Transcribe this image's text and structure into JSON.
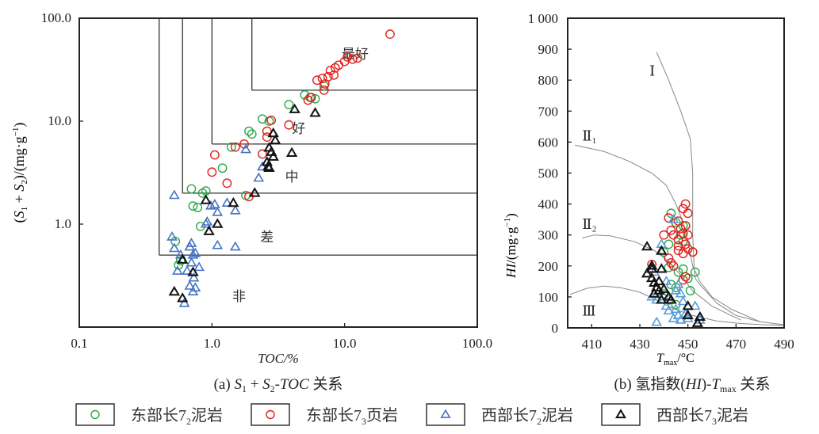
{
  "chart_data": [
    {
      "type": "scatter",
      "id": "a",
      "caption": "(a) S1 + S2-TOC 关系",
      "xlabel": "TOC/%",
      "ylabel": "(S1 + S2)/(mg·g⁻¹)",
      "xscale": "log",
      "yscale": "log",
      "xlim": [
        0.1,
        100
      ],
      "ylim": [
        0.1,
        100
      ],
      "xticks": [
        "0.1",
        "1.0",
        "10.0",
        "100.0"
      ],
      "yticks": [
        "1.0",
        "10.0",
        "100.0"
      ],
      "grid": false,
      "zones": [
        {
          "label": "最好",
          "toc_min": 2.0,
          "s_min": 20
        },
        {
          "label": "好",
          "toc_min": 1.0,
          "s_min": 6
        },
        {
          "label": "中",
          "toc_min": 0.6,
          "s_min": 2
        },
        {
          "label": "差",
          "toc_min": 0.4,
          "s_min": 0.5
        },
        {
          "label": "非",
          "toc_min": 0,
          "s_min": 0
        }
      ],
      "series": [
        {
          "name": "东部长7₂泥岩",
          "marker": "circle",
          "color": "#2aa84a",
          "points": [
            [
              2.4,
              10.5
            ],
            [
              2.7,
              10
            ],
            [
              1.9,
              8
            ],
            [
              2.0,
              7.5
            ],
            [
              1.4,
              5.6
            ],
            [
              3.8,
              14.5
            ],
            [
              5.5,
              17
            ],
            [
              6.0,
              16.5
            ],
            [
              5.0,
              18
            ],
            [
              7.0,
              22
            ],
            [
              1.2,
              3.5
            ],
            [
              1.8,
              1.9
            ],
            [
              0.7,
              2.2
            ],
            [
              0.85,
              2.0
            ],
            [
              0.9,
              2.1
            ],
            [
              0.72,
              1.5
            ],
            [
              0.78,
              1.45
            ],
            [
              0.82,
              0.95
            ],
            [
              0.53,
              0.68
            ],
            [
              0.58,
              0.44
            ],
            [
              0.56,
              0.4
            ]
          ]
        },
        {
          "name": "东部长7₃页岩",
          "marker": "circle",
          "color": "#e0201c",
          "points": [
            [
              22,
              70
            ],
            [
              10.5,
              42
            ],
            [
              11.5,
              40
            ],
            [
              12.5,
              41
            ],
            [
              10,
              38
            ],
            [
              8.5,
              33
            ],
            [
              9,
              35
            ],
            [
              7.8,
              31
            ],
            [
              8.3,
              28
            ],
            [
              6.8,
              26
            ],
            [
              7.5,
              27
            ],
            [
              6.2,
              25
            ],
            [
              7.1,
              23
            ],
            [
              7.0,
              20
            ],
            [
              5.3,
              16
            ],
            [
              5.6,
              17
            ],
            [
              2.8,
              10.2
            ],
            [
              2.6,
              8
            ],
            [
              2.6,
              7
            ],
            [
              3.8,
              9.2
            ],
            [
              1.05,
              4.7
            ],
            [
              1.0,
              3.2
            ],
            [
              1.5,
              5.6
            ],
            [
              1.3,
              2.5
            ],
            [
              2.4,
              4.8
            ],
            [
              1.75,
              6.0
            ],
            [
              1.9,
              1.85
            ]
          ]
        },
        {
          "name": "西部长7₂泥岩",
          "marker": "triangle",
          "color": "#4472c4",
          "points": [
            [
              1.8,
              5.3
            ],
            [
              2.4,
              3.6
            ],
            [
              2.25,
              2.8
            ],
            [
              0.52,
              1.9
            ],
            [
              0.98,
              1.5
            ],
            [
              1.05,
              1.55
            ],
            [
              1.1,
              1.3
            ],
            [
              1.3,
              1.6
            ],
            [
              1.5,
              1.35
            ],
            [
              0.9,
              1.0
            ],
            [
              0.92,
              1.05
            ],
            [
              1.1,
              0.62
            ],
            [
              1.5,
              0.6
            ],
            [
              0.5,
              0.75
            ],
            [
              0.52,
              0.58
            ],
            [
              0.58,
              0.5
            ],
            [
              0.6,
              0.45
            ],
            [
              0.68,
              0.6
            ],
            [
              0.7,
              0.65
            ],
            [
              0.72,
              0.5
            ],
            [
              0.75,
              0.52
            ],
            [
              0.7,
              0.42
            ],
            [
              0.65,
              0.35
            ],
            [
              0.8,
              0.38
            ],
            [
              0.73,
              0.3
            ],
            [
              0.68,
              0.25
            ],
            [
              0.75,
              0.24
            ],
            [
              0.72,
              0.22
            ],
            [
              0.62,
              0.17
            ],
            [
              0.55,
              0.35
            ]
          ]
        },
        {
          "name": "西部长7₃泥岩",
          "marker": "triangle",
          "color": "#111111",
          "points": [
            [
              6.0,
              12
            ],
            [
              4.2,
              13
            ],
            [
              2.9,
              7.6
            ],
            [
              3.0,
              6.5
            ],
            [
              4.0,
              4.9
            ],
            [
              2.7,
              5.5
            ],
            [
              2.8,
              5.0
            ],
            [
              2.6,
              4.0
            ],
            [
              2.65,
              3.6
            ],
            [
              2.7,
              3.5
            ],
            [
              2.9,
              4.5
            ],
            [
              2.1,
              2.0
            ],
            [
              0.9,
              1.7
            ],
            [
              1.45,
              1.6
            ],
            [
              1.1,
              1.0
            ],
            [
              0.95,
              0.85
            ],
            [
              0.6,
              0.45
            ],
            [
              0.72,
              0.34
            ],
            [
              0.52,
              0.22
            ],
            [
              0.6,
              0.19
            ]
          ]
        }
      ]
    },
    {
      "type": "scatter",
      "id": "b",
      "caption": "(b) 氢指数(HI)-Tmax 关系",
      "xlabel": "Tmax/°C",
      "ylabel": "HI/(mg·g⁻¹)",
      "xlim": [
        400,
        490
      ],
      "ylim": [
        0,
        1000
      ],
      "xticks": [
        "410",
        "430",
        "450",
        "470",
        "490"
      ],
      "yticks": [
        "0",
        "100",
        "200",
        "300",
        "400",
        "500",
        "600",
        "700",
        "800",
        "900",
        "1 000"
      ],
      "grid": false,
      "type_lines": [
        {
          "label": "Ⅰ",
          "points": [
            [
              437,
              890
            ],
            [
              442,
              800
            ],
            [
              447,
              700
            ],
            [
              451,
              610
            ],
            [
              452,
              500
            ],
            [
              452,
              300
            ],
            [
              452.5,
              200
            ],
            [
              453,
              160
            ],
            [
              455,
              140
            ],
            [
              462,
              80
            ],
            [
              470,
              40
            ],
            [
              480,
              20
            ],
            [
              490,
              10
            ]
          ]
        },
        {
          "label": "Ⅱ₁",
          "points": [
            [
              403,
              590
            ],
            [
              415,
              570
            ],
            [
              425,
              540
            ],
            [
              435,
              500
            ],
            [
              441,
              460
            ],
            [
              445,
              400
            ],
            [
              448,
              340
            ],
            [
              450,
              280
            ],
            [
              452,
              200
            ],
            [
              455,
              150
            ],
            [
              460,
              100
            ],
            [
              468,
              60
            ],
            [
              480,
              20
            ]
          ]
        },
        {
          "label": "Ⅱ₂",
          "points": [
            [
              406,
              290
            ],
            [
              411,
              300
            ],
            [
              418,
              297
            ],
            [
              428,
              278
            ],
            [
              436,
              250
            ],
            [
              442,
              215
            ],
            [
              447,
              170
            ],
            [
              452,
              120
            ],
            [
              460,
              70
            ],
            [
              472,
              25
            ]
          ]
        },
        {
          "label": "Ⅲ",
          "points": [
            [
              401,
              108
            ],
            [
              408,
              128
            ],
            [
              415,
              135
            ],
            [
              422,
              130
            ],
            [
              430,
              115
            ],
            [
              437,
              90
            ],
            [
              444,
              62
            ],
            [
              452,
              40
            ],
            [
              462,
              22
            ],
            [
              472,
              14
            ],
            [
              482,
              10
            ],
            [
              490,
              8
            ]
          ]
        }
      ],
      "series": [
        {
          "name": "东部长7₂泥岩",
          "marker": "circle",
          "color": "#2aa84a",
          "points": [
            [
              443,
              370
            ],
            [
              445,
              340
            ],
            [
              448,
              330
            ],
            [
              447,
              300
            ],
            [
              442,
              270
            ],
            [
              440,
              245
            ],
            [
              448,
              280
            ],
            [
              452,
              245
            ],
            [
              442,
              195
            ],
            [
              446,
              180
            ],
            [
              448,
              190
            ],
            [
              450,
              160
            ],
            [
              453,
              180
            ],
            [
              443,
              140
            ],
            [
              445,
              130
            ],
            [
              451,
              120
            ],
            [
              440,
              110
            ],
            [
              445,
              75
            ],
            [
              442,
              90
            ]
          ]
        },
        {
          "name": "东部长7₃页岩",
          "marker": "circle",
          "color": "#e0201c",
          "points": [
            [
              449,
              400
            ],
            [
              448,
              385
            ],
            [
              450,
              370
            ],
            [
              442,
              355
            ],
            [
              446,
              345
            ],
            [
              449,
              330
            ],
            [
              447,
              320
            ],
            [
              443,
              315
            ],
            [
              448,
              305
            ],
            [
              450,
              300
            ],
            [
              440,
              300
            ],
            [
              446,
              285
            ],
            [
              449,
              270
            ],
            [
              450,
              255
            ],
            [
              446,
              250
            ],
            [
              448,
              240
            ],
            [
              452,
              245
            ],
            [
              442,
              225
            ],
            [
              443,
              210
            ],
            [
              444,
              200
            ],
            [
              448,
              155
            ],
            [
              449,
              165
            ],
            [
              435,
              205
            ],
            [
              444,
              300
            ],
            [
              446,
              265
            ]
          ]
        },
        {
          "name": "西部长7₂泥岩",
          "marker": "triangle",
          "color": "#5b9bd5",
          "points": [
            [
              444,
              350
            ],
            [
              439,
              270
            ],
            [
              441,
              150
            ],
            [
              446,
              140
            ],
            [
              445,
              120
            ],
            [
              440,
              100
            ],
            [
              447,
              110
            ],
            [
              443,
              90
            ],
            [
              437,
              90
            ],
            [
              435,
              100
            ],
            [
              436,
              180
            ],
            [
              441,
              70
            ],
            [
              445,
              60
            ],
            [
              446,
              40
            ],
            [
              444,
              30
            ],
            [
              447,
              25
            ],
            [
              450,
              30
            ],
            [
              453,
              70
            ],
            [
              455,
              25
            ],
            [
              437,
              18
            ],
            [
              449,
              45
            ],
            [
              442,
              55
            ],
            [
              448,
              85
            ]
          ]
        },
        {
          "name": "西部长7₃泥岩",
          "marker": "triangle",
          "color": "#111111",
          "points": [
            [
              433,
              262
            ],
            [
              439,
              248
            ],
            [
              435,
              200
            ],
            [
              433,
              175
            ],
            [
              439,
              190
            ],
            [
              435,
              160
            ],
            [
              436,
              145
            ],
            [
              437,
              130
            ],
            [
              438,
              150
            ],
            [
              436,
              110
            ],
            [
              438,
              120
            ],
            [
              440,
              125
            ],
            [
              439,
              90
            ],
            [
              442,
              100
            ],
            [
              443,
              90
            ],
            [
              450,
              70
            ],
            [
              450,
              40
            ],
            [
              455,
              35
            ],
            [
              454,
              15
            ],
            [
              435,
              190
            ]
          ]
        }
      ]
    }
  ],
  "legend": {
    "items": [
      {
        "label": "东部长7",
        "sub": "2",
        "suffix": "泥岩"
      },
      {
        "label": "东部长7",
        "sub": "3",
        "suffix": "页岩"
      },
      {
        "label": "西部长7",
        "sub": "2",
        "suffix": "泥岩"
      },
      {
        "label": "西部长7",
        "sub": "3",
        "suffix": "泥岩"
      }
    ]
  }
}
